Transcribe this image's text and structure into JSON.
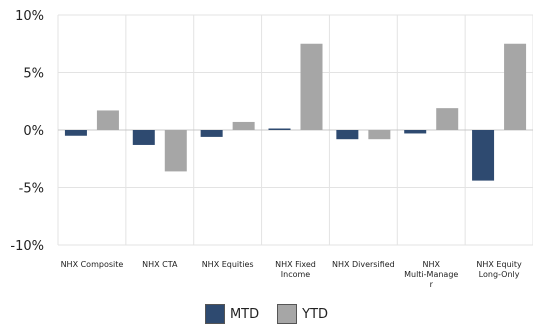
{
  "chart_data": {
    "type": "bar",
    "categories": [
      [
        "NHX Composite"
      ],
      [
        "NHX CTA"
      ],
      [
        "NHX Equities"
      ],
      [
        "NHX Fixed",
        "Income"
      ],
      [
        "NHX Diversified"
      ],
      [
        "NHX",
        "Multi-Manage",
        "r"
      ],
      [
        "NHX Equity",
        "Long-Only"
      ]
    ],
    "series": [
      {
        "name": "MTD",
        "color": "#2e4a70",
        "values": [
          -0.5,
          -1.3,
          -0.6,
          0.0,
          -0.8,
          -0.3,
          -4.4
        ]
      },
      {
        "name": "YTD",
        "color": "#a6a6a6",
        "values": [
          1.7,
          -3.6,
          0.7,
          7.5,
          -0.8,
          1.9,
          7.5
        ]
      }
    ],
    "y_ticks": [
      "10%",
      "5%",
      "0%",
      "-5%",
      "-10%"
    ],
    "ylim": [
      -10,
      10
    ],
    "legend_position": "bottom"
  }
}
